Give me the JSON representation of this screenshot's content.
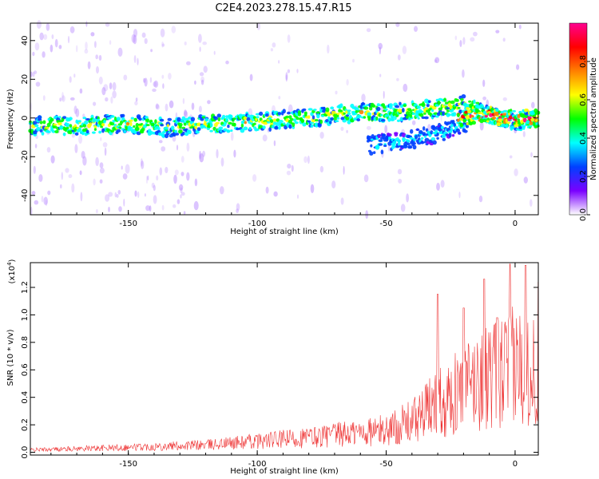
{
  "figure_title": "C2E4.2023.278.15.47.R15",
  "chart_data": [
    {
      "type": "heatmap",
      "xlabel": "Height of straight line (km)",
      "ylabel": "Frequency (Hz)",
      "xlim": [
        -188,
        9
      ],
      "ylim": [
        -50,
        49
      ],
      "xticks": [
        -150,
        -100,
        -50,
        0
      ],
      "yticks": [
        -40,
        -20,
        0,
        20,
        40
      ],
      "colorbar": {
        "label": "Normalized spectral amplitude",
        "range": [
          0,
          1
        ],
        "ticks": [
          "0.0",
          "0.2",
          "0.4",
          "0.6",
          "0.8"
        ],
        "colormap": [
          "#ffffff",
          "#7a00ff",
          "#0040ff",
          "#00ffff",
          "#00ff00",
          "#ffff00",
          "#ff8000",
          "#ff0000",
          "#ff0090"
        ]
      },
      "ridges": [
        {
          "x": [
            -188,
            -170,
            -150,
            -135,
            -120,
            -100,
            -80,
            -60,
            -45,
            -30,
            -20,
            -10,
            0,
            9
          ],
          "y": [
            -4,
            -4,
            -3,
            -5,
            -3,
            -2,
            0,
            3,
            3,
            5,
            7,
            1,
            -2,
            0
          ],
          "amplitude": 0.55
        },
        {
          "x": [
            -57,
            -50,
            -40,
            -30,
            -24,
            -18
          ],
          "y": [
            -14,
            -13,
            -11,
            -8,
            -5,
            -2
          ],
          "amplitude": 0.3
        },
        {
          "x": [
            -22,
            -15,
            -8,
            0,
            5,
            9
          ],
          "y": [
            0,
            2,
            1,
            -1,
            0,
            0
          ],
          "amplitude": 0.9
        }
      ]
    },
    {
      "type": "line",
      "xlabel": "Height of straight line (km)",
      "ylabel": "SNR (10 * v/v)",
      "scale_label": "(x10",
      "scale_exp": "4",
      "scale_close": ")",
      "xlim": [
        -188,
        9
      ],
      "ylim": [
        -0.02,
        1.38
      ],
      "xticks": [
        -150,
        -100,
        -50,
        0
      ],
      "yticks": [
        "0.0",
        "0.2",
        "0.4",
        "0.6",
        "0.8",
        "1.0",
        "1.2"
      ],
      "color": "#ee3333",
      "envelope": {
        "x": [
          -188,
          -150,
          -120,
          -100,
          -80,
          -60,
          -50,
          -40,
          -35,
          -30,
          -25,
          -20,
          -15,
          -10,
          -5,
          0,
          5,
          9
        ],
        "y": [
          0.02,
          0.04,
          0.06,
          0.09,
          0.12,
          0.16,
          0.18,
          0.25,
          0.32,
          0.42,
          0.45,
          0.5,
          0.58,
          0.6,
          0.65,
          0.7,
          0.68,
          0.6
        ]
      },
      "peaks": [
        {
          "x": -30,
          "y": 1.15
        },
        {
          "x": -20,
          "y": 1.05
        },
        {
          "x": -12,
          "y": 1.26
        },
        {
          "x": -7,
          "y": 0.98
        },
        {
          "x": -2,
          "y": 1.37
        },
        {
          "x": 4,
          "y": 1.36
        },
        {
          "x": 9,
          "y": 1.24
        }
      ]
    }
  ]
}
